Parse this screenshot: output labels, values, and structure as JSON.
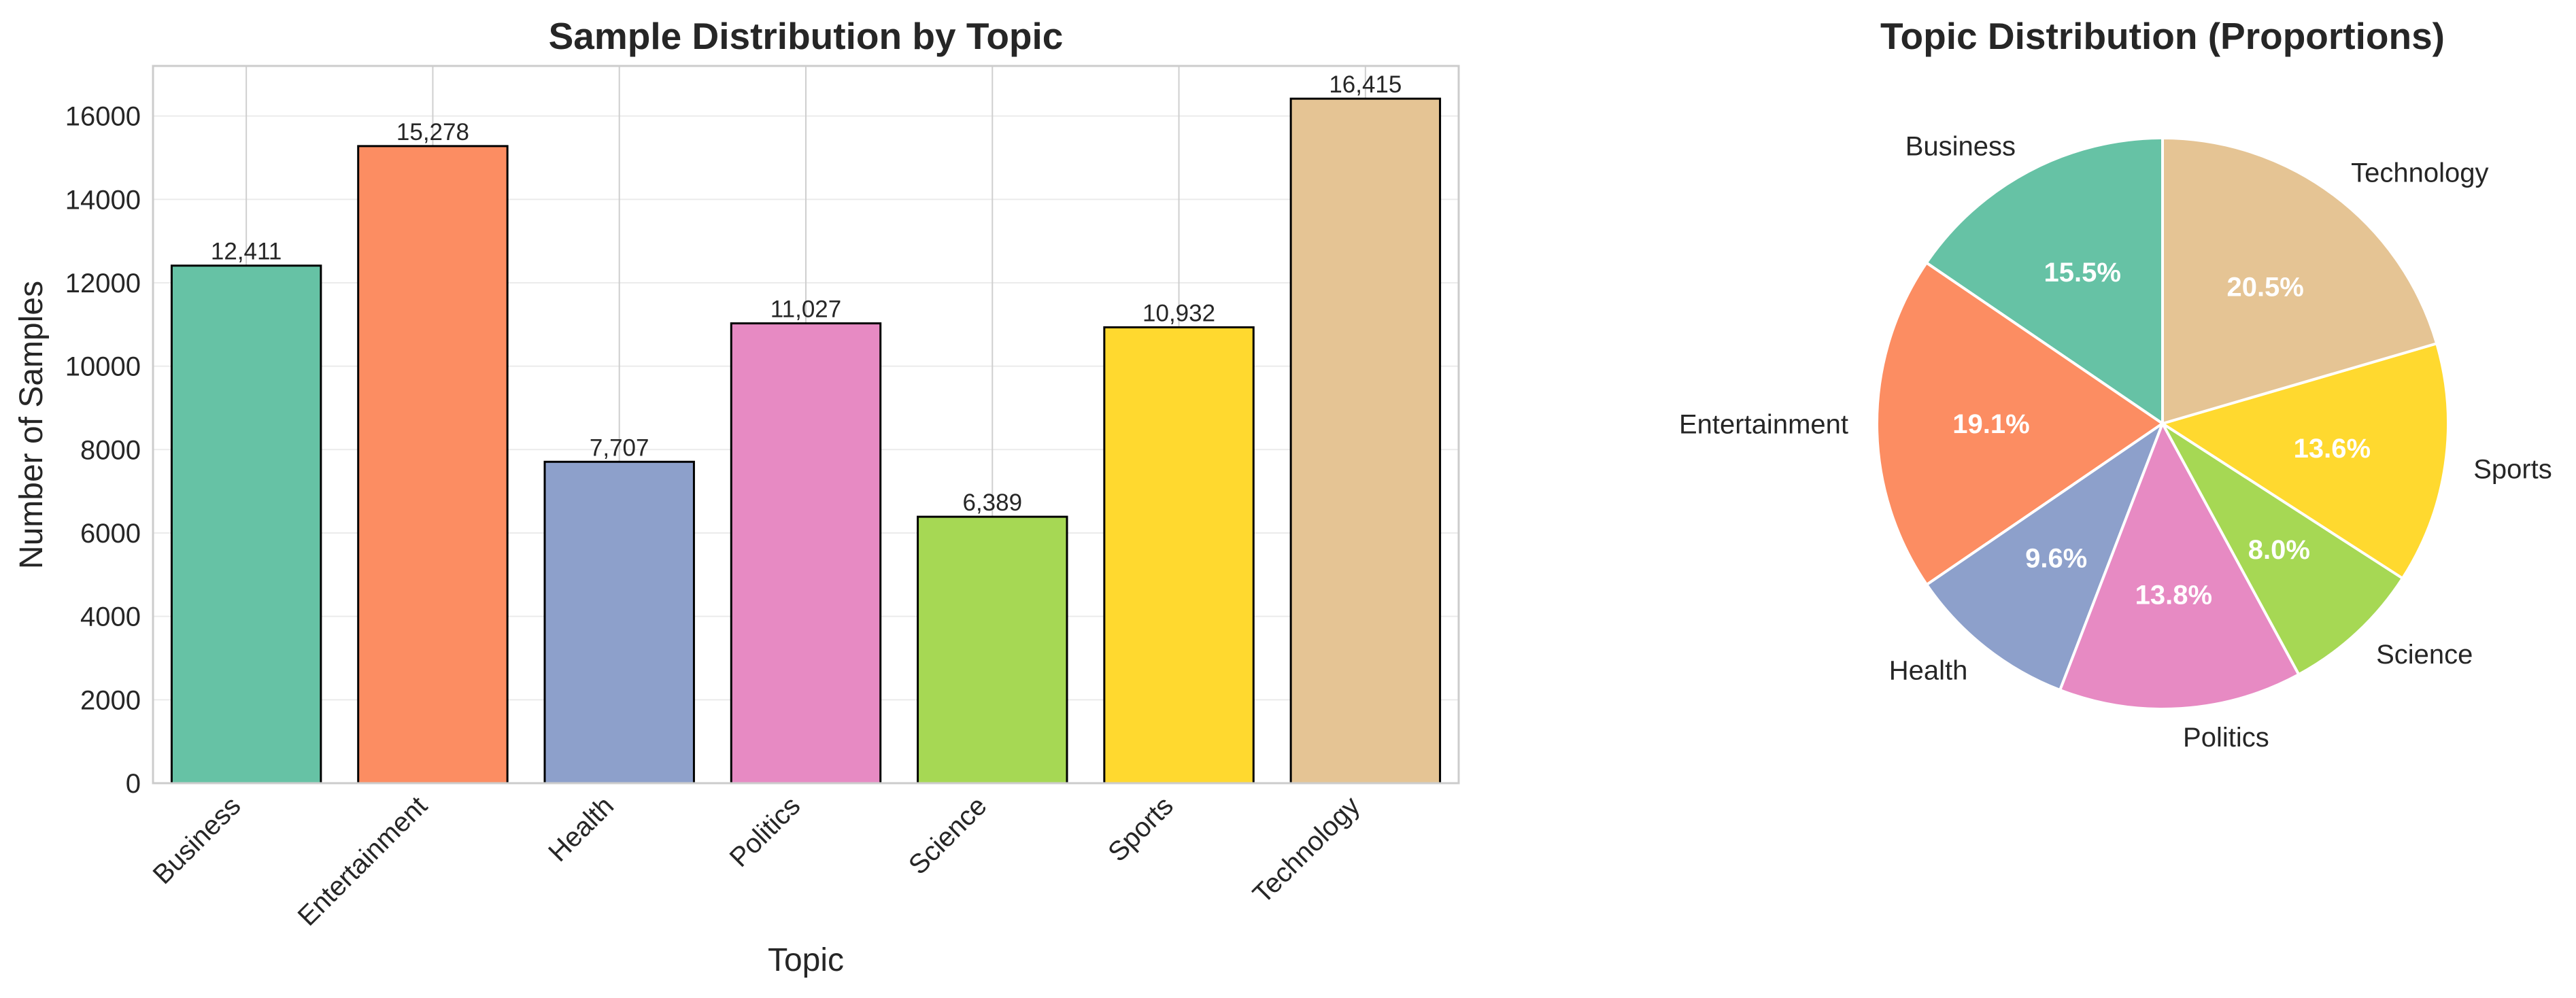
{
  "chart_data": [
    {
      "type": "bar",
      "title": "Sample Distribution by Topic",
      "xlabel": "Topic",
      "ylabel": "Number of Samples",
      "categories": [
        "Business",
        "Entertainment",
        "Health",
        "Politics",
        "Science",
        "Sports",
        "Technology"
      ],
      "values": [
        12411,
        15278,
        7707,
        11027,
        6389,
        10932,
        16415
      ],
      "value_labels": [
        "12,411",
        "15,278",
        "7,707",
        "11,027",
        "6,389",
        "10,932",
        "16,415"
      ],
      "colors": [
        "#66c2a5",
        "#fc8d62",
        "#8da0cb",
        "#e78ac3",
        "#a6d854",
        "#ffd92f",
        "#e5c494"
      ],
      "ylim": [
        0,
        17200
      ],
      "yticks": [
        0,
        2000,
        4000,
        6000,
        8000,
        10000,
        12000,
        14000,
        16000
      ],
      "grid": true
    },
    {
      "type": "pie",
      "title": "Topic Distribution (Proportions)",
      "labels": [
        "Business",
        "Entertainment",
        "Health",
        "Politics",
        "Science",
        "Sports",
        "Technology"
      ],
      "values": [
        12411,
        15278,
        7707,
        11027,
        6389,
        10932,
        16415
      ],
      "percent_labels": [
        "15.5%",
        "19.1%",
        "9.6%",
        "13.8%",
        "8.0%",
        "13.6%",
        "20.5%"
      ],
      "colors": [
        "#66c2a5",
        "#fc8d62",
        "#8da0cb",
        "#e78ac3",
        "#a6d854",
        "#ffd92f",
        "#e5c494"
      ],
      "start_angle_deg": 90,
      "direction": "counterclockwise"
    }
  ]
}
